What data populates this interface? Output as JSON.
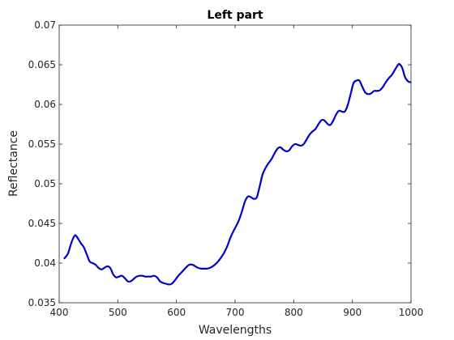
{
  "chart_data": {
    "type": "line",
    "title": "Left part",
    "xlabel": "Wavelengths",
    "ylabel": "Reflectance",
    "xlim": [
      400,
      1000
    ],
    "ylim": [
      0.035,
      0.07
    ],
    "xticks": [
      400,
      500,
      600,
      700,
      800,
      900,
      1000
    ],
    "xtick_labels": [
      "400",
      "500",
      "600",
      "700",
      "800",
      "900",
      "1000"
    ],
    "yticks": [
      0.035,
      0.04,
      0.045,
      0.05,
      0.055,
      0.06,
      0.065,
      0.07
    ],
    "ytick_labels": [
      "0.035",
      "0.04",
      "0.045",
      "0.05",
      "0.055",
      "0.06",
      "0.065",
      "0.07"
    ],
    "grid": false,
    "line_color": "#0000cc",
    "series": [
      {
        "x": [
          409,
          415,
          420,
          425,
          428,
          432,
          437,
          442,
          447,
          452,
          457,
          462,
          467,
          472,
          477,
          482,
          487,
          492,
          497,
          502,
          507,
          512,
          517,
          522,
          527,
          532,
          537,
          542,
          547,
          552,
          557,
          562,
          567,
          572,
          577,
          582,
          587,
          592,
          597,
          602,
          607,
          612,
          617,
          622,
          627,
          632,
          637,
          642,
          647,
          652,
          657,
          662,
          667,
          672,
          677,
          682,
          687,
          692,
          697,
          702,
          707,
          712,
          717,
          722,
          727,
          732,
          737,
          742,
          747,
          752,
          757,
          762,
          767,
          772,
          777,
          782,
          787,
          792,
          797,
          802,
          807,
          812,
          817,
          822,
          827,
          832,
          837,
          842,
          847,
          852,
          857,
          862,
          867,
          872,
          877,
          882,
          887,
          892,
          897,
          902,
          907,
          912,
          917,
          922,
          927,
          932,
          937,
          942,
          947,
          952,
          957,
          962,
          967,
          972,
          977,
          980,
          985,
          990,
          995,
          999
        ],
        "y": [
          0.0406,
          0.0412,
          0.0424,
          0.0433,
          0.0435,
          0.0431,
          0.0425,
          0.042,
          0.0411,
          0.0402,
          0.04,
          0.0398,
          0.0394,
          0.0392,
          0.0394,
          0.0396,
          0.0394,
          0.0386,
          0.0382,
          0.0383,
          0.0384,
          0.0381,
          0.0377,
          0.0377,
          0.038,
          0.0383,
          0.0384,
          0.0384,
          0.0383,
          0.0383,
          0.0383,
          0.0384,
          0.0382,
          0.0377,
          0.0375,
          0.0374,
          0.0373,
          0.0374,
          0.0378,
          0.0383,
          0.0387,
          0.0391,
          0.0395,
          0.0398,
          0.0398,
          0.0396,
          0.0394,
          0.0393,
          0.0393,
          0.0393,
          0.0394,
          0.0396,
          0.0399,
          0.0403,
          0.0408,
          0.0414,
          0.0422,
          0.0432,
          0.044,
          0.0447,
          0.0455,
          0.0466,
          0.0478,
          0.0484,
          0.0483,
          0.0481,
          0.0483,
          0.0497,
          0.0512,
          0.052,
          0.0526,
          0.0531,
          0.0538,
          0.0544,
          0.0546,
          0.0543,
          0.0541,
          0.0542,
          0.0547,
          0.055,
          0.0549,
          0.0548,
          0.055,
          0.0556,
          0.0562,
          0.0566,
          0.0569,
          0.0575,
          0.058,
          0.058,
          0.0576,
          0.0574,
          0.0579,
          0.0587,
          0.0592,
          0.0591,
          0.0591,
          0.0599,
          0.0613,
          0.0627,
          0.063,
          0.063,
          0.0622,
          0.0615,
          0.0613,
          0.0614,
          0.0617,
          0.0617,
          0.0618,
          0.0622,
          0.0628,
          0.0633,
          0.0637,
          0.0643,
          0.0649,
          0.0651,
          0.0646,
          0.0634,
          0.0629,
          0.0628
        ]
      }
    ]
  }
}
